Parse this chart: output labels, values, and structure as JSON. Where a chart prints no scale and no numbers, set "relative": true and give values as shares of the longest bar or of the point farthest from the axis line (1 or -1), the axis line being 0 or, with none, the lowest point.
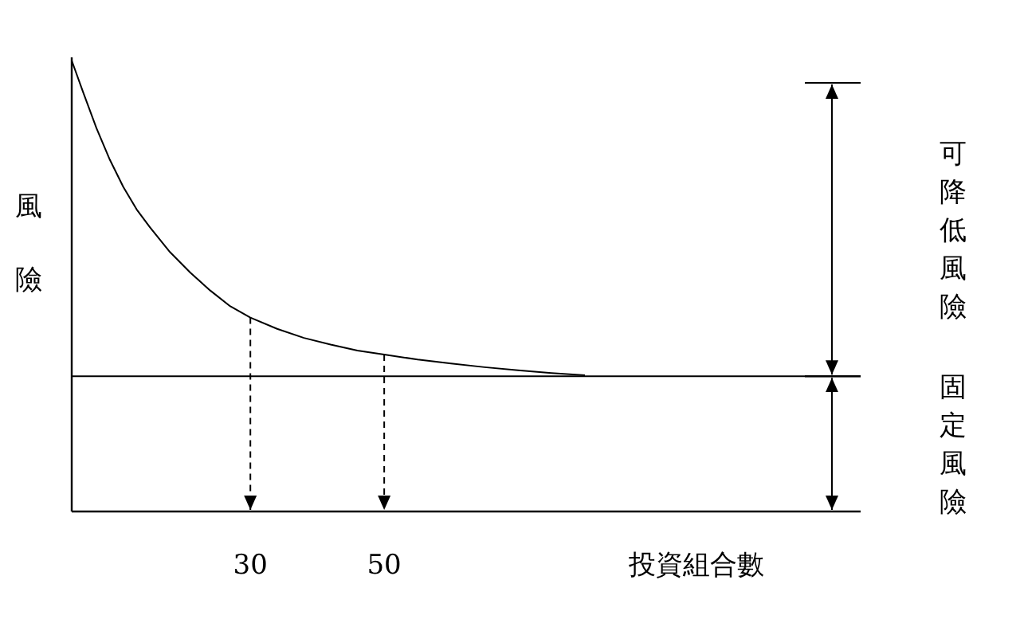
{
  "chart_data": {
    "type": "line",
    "relative": true,
    "xlabel": "投資組合數",
    "ylabel": "風險",
    "x": [
      3.3,
      5,
      7,
      9,
      11,
      13,
      15,
      18,
      21,
      24,
      27,
      30,
      34,
      38,
      42,
      46,
      50,
      55,
      60,
      65,
      70,
      75,
      80
    ],
    "values": [
      1.0,
      0.93,
      0.85,
      0.78,
      0.72,
      0.67,
      0.63,
      0.575,
      0.53,
      0.49,
      0.455,
      0.43,
      0.405,
      0.385,
      0.37,
      0.357,
      0.348,
      0.337,
      0.328,
      0.32,
      0.313,
      0.307,
      0.302
    ],
    "color": "#000000",
    "xlim": [
      3.3,
      121.2
    ],
    "xticks": [
      30,
      50
    ],
    "marker": "none",
    "ref_lines": [
      {
        "axis": "y",
        "value": 0.3
      },
      {
        "axis": "x",
        "value": 30,
        "line_style": "dashed"
      },
      {
        "axis": "x",
        "value": 50,
        "line_style": "dashed"
      }
    ],
    "annotations": [
      "可降低風險",
      "固定風險"
    ]
  }
}
